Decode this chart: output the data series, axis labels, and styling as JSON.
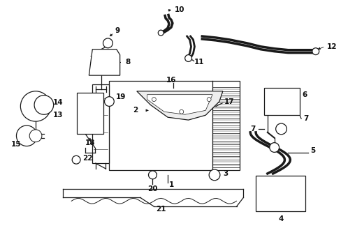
{
  "bg_color": "#ffffff",
  "line_color": "#1a1a1a",
  "text_color": "#111111",
  "fig_width": 4.89,
  "fig_height": 3.6,
  "dpi": 100,
  "lw": 0.9,
  "fontsize": 7.5
}
